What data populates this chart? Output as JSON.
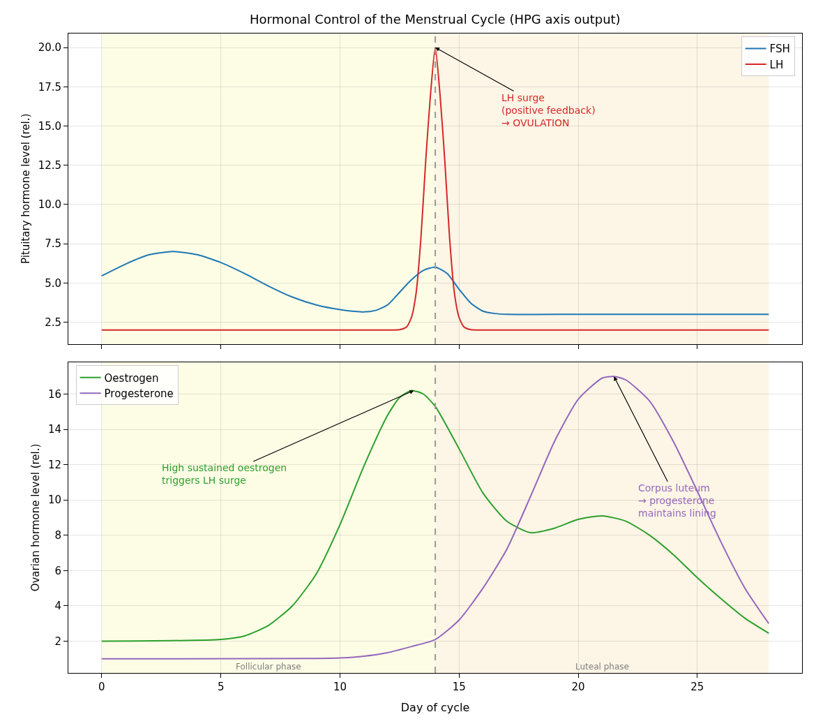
{
  "chart_data": [
    {
      "type": "line",
      "title": "Hormonal Control of the Menstrual Cycle (HPG axis output)",
      "ylabel": "Pituitary hormone level (rel.)",
      "xlim": [
        -1.4,
        29.4
      ],
      "xticks": [
        0,
        5,
        10,
        15,
        20,
        25
      ],
      "ylim": [
        1.1,
        20.9
      ],
      "yticks": [
        {
          "value": 2.5,
          "label": "2.5"
        },
        {
          "value": 5,
          "label": "5.0"
        },
        {
          "value": 7.5,
          "label": "7.5"
        },
        {
          "value": 10,
          "label": "10.0"
        },
        {
          "value": 12.5,
          "label": "12.5"
        },
        {
          "value": 15,
          "label": "15.0"
        },
        {
          "value": 17.5,
          "label": "17.5"
        },
        {
          "value": 20,
          "label": "20.0"
        }
      ],
      "series": [
        {
          "name": "FSH",
          "color": "#1f77b4",
          "x": [
            0,
            1,
            2,
            3,
            4,
            5,
            6,
            7,
            8,
            9,
            10,
            11,
            11.5,
            12,
            12.5,
            13,
            13.5,
            14,
            14.5,
            15,
            15.5,
            16,
            16.5,
            17,
            20,
            24,
            28
          ],
          "values": [
            5.45,
            6.2,
            6.8,
            7.0,
            6.8,
            6.3,
            5.6,
            4.8,
            4.1,
            3.6,
            3.3,
            3.15,
            3.25,
            3.6,
            4.4,
            5.2,
            5.8,
            6.0,
            5.6,
            4.6,
            3.7,
            3.2,
            3.05,
            3.0,
            3.0,
            3.0,
            3.0
          ]
        },
        {
          "name": "LH",
          "color": "#d62728",
          "x": [
            0,
            6,
            12,
            12.5,
            12.8,
            13,
            13.2,
            13.4,
            13.6,
            13.8,
            14,
            14.2,
            14.4,
            14.6,
            14.8,
            15,
            15.2,
            15.5,
            16,
            20,
            28
          ],
          "values": [
            2,
            2,
            2,
            2.02,
            2.2,
            2.8,
            4.4,
            7.9,
            12.8,
            17.0,
            20,
            17.0,
            12.8,
            7.9,
            4.4,
            2.8,
            2.2,
            2.02,
            2,
            2,
            2
          ]
        }
      ],
      "bands": [
        {
          "axis": "x",
          "from": 0,
          "to": 14,
          "color": "#fdfde6"
        },
        {
          "axis": "x",
          "from": 14,
          "to": 28,
          "color": "#fdf5e6"
        }
      ],
      "ref_lines": [
        {
          "axis": "x",
          "value": 14,
          "color": "#999999",
          "line_style": "dashed"
        }
      ],
      "annotations": [
        {
          "text": "LH surge\n(positive feedback)\n→ OVULATION",
          "x": 14,
          "y": 20
        }
      ],
      "grid": true,
      "legend": "top right",
      "tick_labels": "y",
      "marker": "none",
      "line_style": "solid"
    },
    {
      "type": "line",
      "xlabel": "Day of cycle",
      "ylabel": "Ovarian hormone level (rel.)",
      "xlim": [
        -1.4,
        29.4
      ],
      "xticks": [
        0,
        5,
        10,
        15,
        20,
        25
      ],
      "ylim": [
        0.2,
        17.8
      ],
      "yticks": [
        2,
        4,
        6,
        8,
        10,
        12,
        14,
        16
      ],
      "series": [
        {
          "name": "Oestrogen",
          "color": "#2ca02c",
          "x": [
            0,
            5,
            6,
            7,
            8,
            9,
            10,
            11,
            12,
            12.5,
            13,
            13.5,
            14,
            15,
            16,
            17,
            18,
            19,
            20,
            21,
            22,
            23,
            24,
            25,
            26,
            27,
            28
          ],
          "values": [
            2,
            2.1,
            2.3,
            2.9,
            4.0,
            5.8,
            8.6,
            11.9,
            14.8,
            15.8,
            16.2,
            16.0,
            15.3,
            12.9,
            10.4,
            8.8,
            8.15,
            8.4,
            8.9,
            9.1,
            8.8,
            8.0,
            6.9,
            5.6,
            4.4,
            3.3,
            2.45
          ]
        },
        {
          "name": "Progesterone",
          "color": "#9467bd",
          "x": [
            0,
            9,
            10,
            11,
            12,
            13,
            14,
            15,
            16,
            17,
            18,
            19,
            20,
            21,
            21.5,
            22,
            23,
            24,
            25,
            26,
            27,
            28
          ],
          "values": [
            1,
            1.02,
            1.05,
            1.15,
            1.35,
            1.7,
            2.1,
            3.2,
            5.0,
            7.2,
            10.2,
            13.3,
            15.7,
            16.9,
            17.0,
            16.8,
            15.6,
            13.3,
            10.5,
            7.6,
            5.0,
            3.0
          ]
        }
      ],
      "bands": [
        {
          "axis": "x",
          "from": 0,
          "to": 14,
          "color": "#fdfde6",
          "label": "Follicular phase"
        },
        {
          "axis": "x",
          "from": 14,
          "to": 28,
          "color": "#fdf5e6",
          "label": "Luteal phase"
        }
      ],
      "ref_lines": [
        {
          "axis": "x",
          "value": 14,
          "color": "#999999",
          "line_style": "dashed"
        }
      ],
      "annotations": [
        {
          "text": "High sustained oestrogen\ntriggers LH surge",
          "x": 13.1,
          "y": 16.2
        },
        {
          "text": "Corpus luteum\n→ progesterone\nmaintains lining",
          "x": 21.5,
          "y": 17.0
        }
      ],
      "grid": true,
      "legend": "top left",
      "marker": "none",
      "line_style": "solid"
    }
  ]
}
